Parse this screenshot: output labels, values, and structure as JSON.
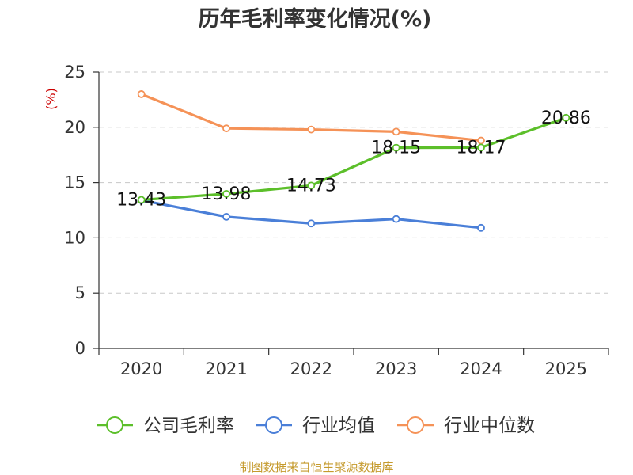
{
  "chart_data": {
    "type": "line",
    "title": "历年毛利率变化情况(%)",
    "ylabel": "(%)",
    "xlabel": "",
    "categories": [
      "2020",
      "2021",
      "2022",
      "2023",
      "2024",
      "2025"
    ],
    "ylim": [
      0,
      25
    ],
    "yticks": [
      0,
      5,
      10,
      15,
      20,
      25
    ],
    "grid": true,
    "legend_position": "bottom",
    "series": [
      {
        "name": "公司毛利率",
        "color": "#5cbf2a",
        "values": [
          13.43,
          13.98,
          14.73,
          18.15,
          18.17,
          20.86
        ],
        "labels": [
          "13.43",
          "13.98",
          "14.73",
          "18.15",
          "18.17",
          "20.86"
        ]
      },
      {
        "name": "行业均值",
        "color": "#4a7fd8",
        "values": [
          13.4,
          11.9,
          11.3,
          11.7,
          10.9,
          null
        ]
      },
      {
        "name": "行业中位数",
        "color": "#f59257",
        "values": [
          23.0,
          19.9,
          19.8,
          19.6,
          18.8,
          null
        ]
      }
    ]
  },
  "source": "制图数据来自恒生聚源数据库"
}
